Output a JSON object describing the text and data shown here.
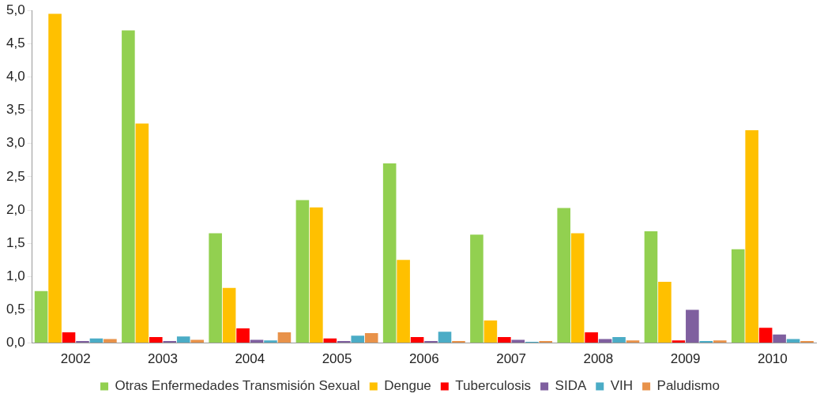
{
  "chart_data": {
    "type": "bar",
    "categories": [
      "2002",
      "2003",
      "2004",
      "2005",
      "2006",
      "2007",
      "2008",
      "2009",
      "2010"
    ],
    "series": [
      {
        "name": "Otras Enfermedades Transmisión Sexual",
        "color": "#92d050",
        "values": [
          0.78,
          4.7,
          1.65,
          2.15,
          2.7,
          1.63,
          2.03,
          1.68,
          1.41
        ]
      },
      {
        "name": "Dengue",
        "color": "#ffc000",
        "values": [
          4.95,
          3.3,
          0.83,
          2.04,
          1.25,
          0.34,
          1.65,
          0.92,
          3.2
        ]
      },
      {
        "name": "Tuberculosis",
        "color": "#ff0000",
        "values": [
          0.16,
          0.09,
          0.22,
          0.07,
          0.09,
          0.09,
          0.16,
          0.04,
          0.23
        ]
      },
      {
        "name": "SIDA",
        "color": "#7f5f9f",
        "values": [
          0.03,
          0.03,
          0.05,
          0.03,
          0.03,
          0.05,
          0.06,
          0.5,
          0.13
        ]
      },
      {
        "name": "VIH",
        "color": "#4bacc6",
        "values": [
          0.07,
          0.1,
          0.04,
          0.11,
          0.17,
          0.02,
          0.09,
          0.03,
          0.06
        ]
      },
      {
        "name": "Paludismo",
        "color": "#e8924a",
        "values": [
          0.06,
          0.05,
          0.16,
          0.15,
          0.03,
          0.03,
          0.04,
          0.04,
          0.03
        ]
      }
    ],
    "ylim": [
      0,
      5
    ],
    "yticks": [
      {
        "value": 0,
        "label": "0,0"
      },
      {
        "value": 0.5,
        "label": "0,5"
      },
      {
        "value": 1,
        "label": "1,0"
      },
      {
        "value": 1.5,
        "label": "1,5"
      },
      {
        "value": 2,
        "label": "2,0"
      },
      {
        "value": 2.5,
        "label": "2,5"
      },
      {
        "value": 3,
        "label": "3,0"
      },
      {
        "value": 3.5,
        "label": "3,5"
      },
      {
        "value": 4,
        "label": "4,0"
      },
      {
        "value": 4.5,
        "label": "4,5"
      },
      {
        "value": 5,
        "label": "5,0"
      }
    ],
    "grid": false,
    "legend": "bottom"
  }
}
